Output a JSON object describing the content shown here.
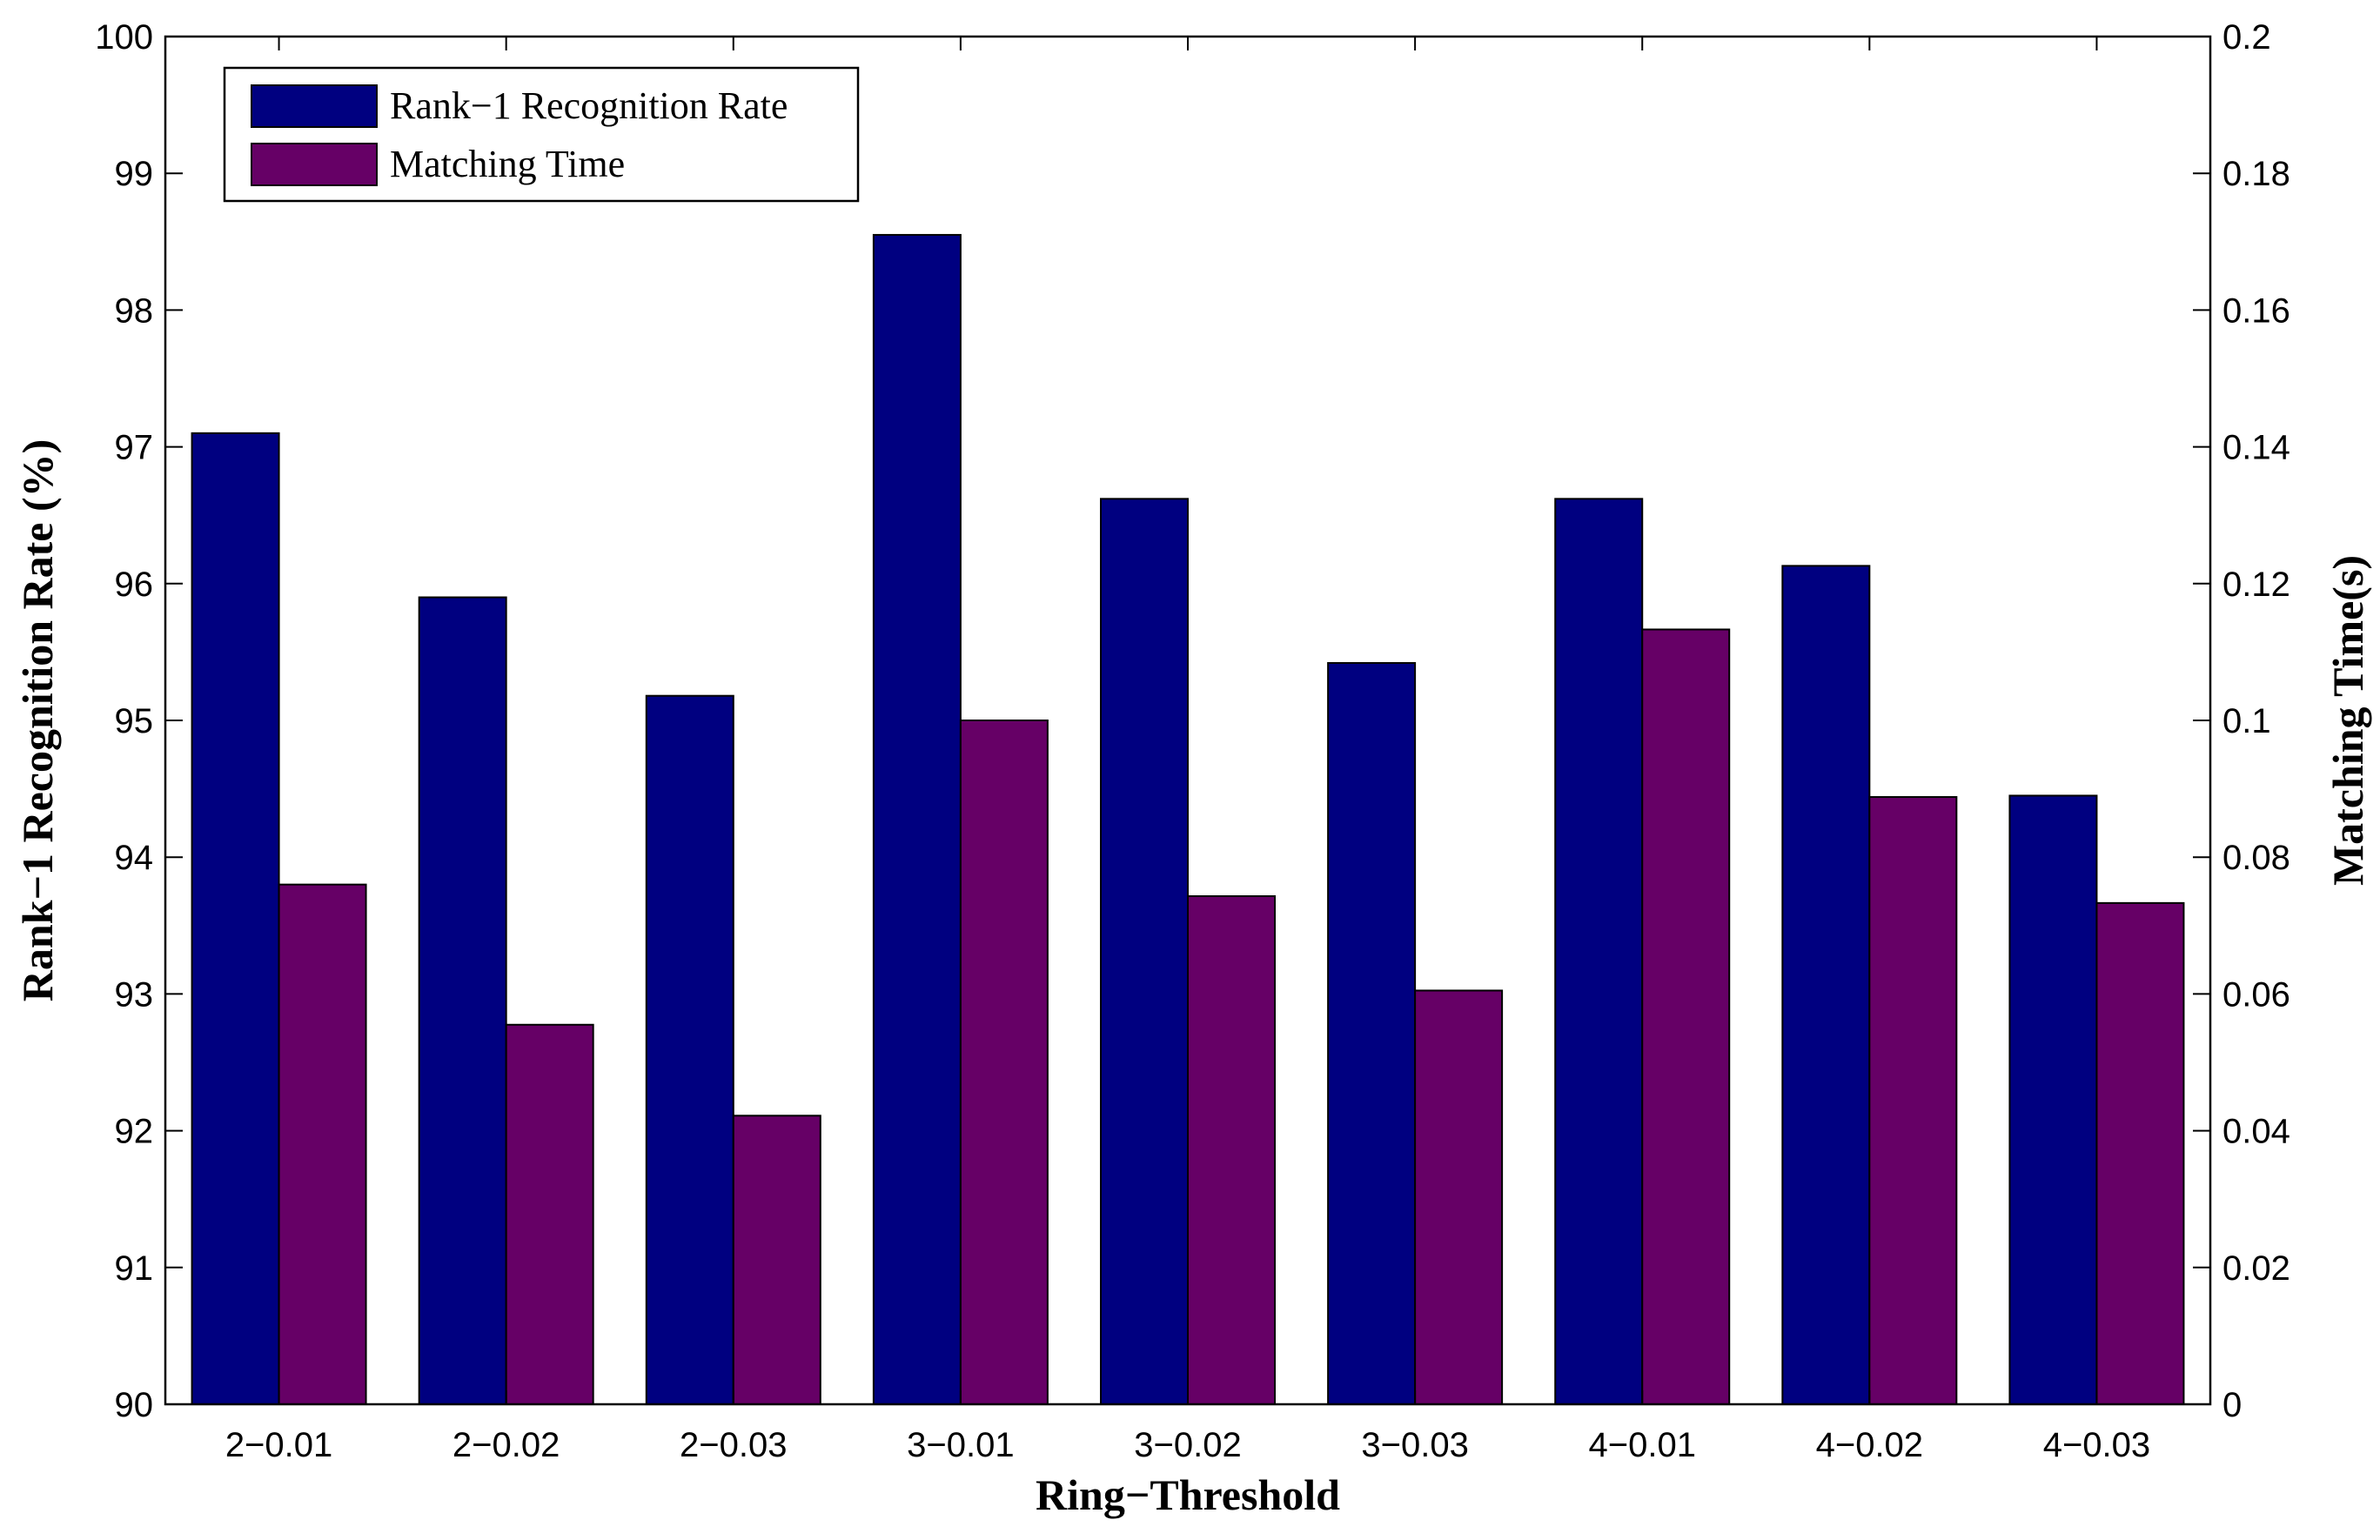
{
  "chart_data": {
    "type": "bar",
    "xlabel": "Ring−Threshold",
    "ylabel": "Rank−1 Recognition Rate (%)",
    "y2label": "Matching Time(s)",
    "categories": [
      "2−0.01",
      "2−0.02",
      "2−0.03",
      "3−0.01",
      "3−0.02",
      "3−0.03",
      "4−0.01",
      "4−0.02",
      "4−0.03"
    ],
    "ylim": [
      90,
      100
    ],
    "yticks": [
      90,
      91,
      92,
      93,
      94,
      95,
      96,
      97,
      98,
      99,
      100
    ],
    "ytick_labels": [
      "90",
      "91",
      "92",
      "93",
      "94",
      "95",
      "96",
      "97",
      "98",
      "99",
      "100"
    ],
    "y2lim": [
      0,
      0.2
    ],
    "y2ticks": [
      0,
      0.02,
      0.04,
      0.06,
      0.08,
      0.1,
      0.12,
      0.14,
      0.16,
      0.18,
      0.2
    ],
    "y2tick_labels": [
      "0",
      "0.02",
      "0.04",
      "0.06",
      "0.08",
      "0.1",
      "0.12",
      "0.14",
      "0.16",
      "0.18",
      "0.2"
    ],
    "series": [
      {
        "name": "Rank−1 Recognition Rate",
        "axis": "left",
        "color": "#000080",
        "values": [
          97.1,
          95.9,
          95.18,
          98.55,
          96.62,
          95.42,
          96.62,
          96.13,
          94.45
        ]
      },
      {
        "name": "Matching Time",
        "axis": "right",
        "color": "#660066",
        "values": [
          0.076,
          0.0555,
          0.0422,
          0.1,
          0.0743,
          0.0605,
          0.1133,
          0.0888,
          0.0733
        ]
      }
    ],
    "legend_position": "top-left",
    "grid": false
  }
}
